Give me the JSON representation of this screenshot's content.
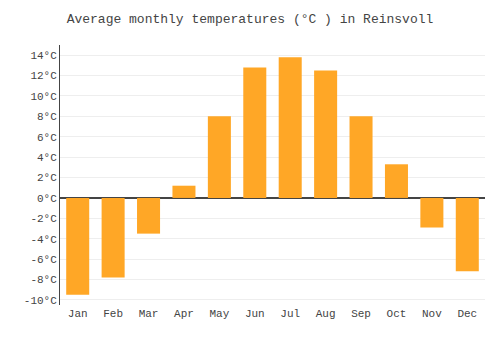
{
  "chart_data": {
    "type": "bar",
    "title": "Average monthly temperatures (°C ) in Reinsvoll",
    "categories": [
      "Jan",
      "Feb",
      "Mar",
      "Apr",
      "May",
      "Jun",
      "Jul",
      "Aug",
      "Sep",
      "Oct",
      "Nov",
      "Dec"
    ],
    "values": [
      -9.5,
      -7.8,
      -3.5,
      1.2,
      8.0,
      12.8,
      13.8,
      12.5,
      8.0,
      3.3,
      -2.9,
      -7.2
    ],
    "color": "#FFA726",
    "ylim": [
      -10.5,
      15
    ],
    "yticks": [
      {
        "value": -10,
        "label": "-10°C"
      },
      {
        "value": -8,
        "label": "-8°C"
      },
      {
        "value": -6,
        "label": "-6°C"
      },
      {
        "value": -4,
        "label": "-4°C"
      },
      {
        "value": -2,
        "label": "-2°C"
      },
      {
        "value": 0,
        "label": "0°C"
      },
      {
        "value": 2,
        "label": "2°C"
      },
      {
        "value": 4,
        "label": "4°C"
      },
      {
        "value": 6,
        "label": "6°C"
      },
      {
        "value": 8,
        "label": "8°C"
      },
      {
        "value": 10,
        "label": "10°C"
      },
      {
        "value": 12,
        "label": "12°C"
      },
      {
        "value": 14,
        "label": "14°C"
      }
    ],
    "grid": true
  }
}
